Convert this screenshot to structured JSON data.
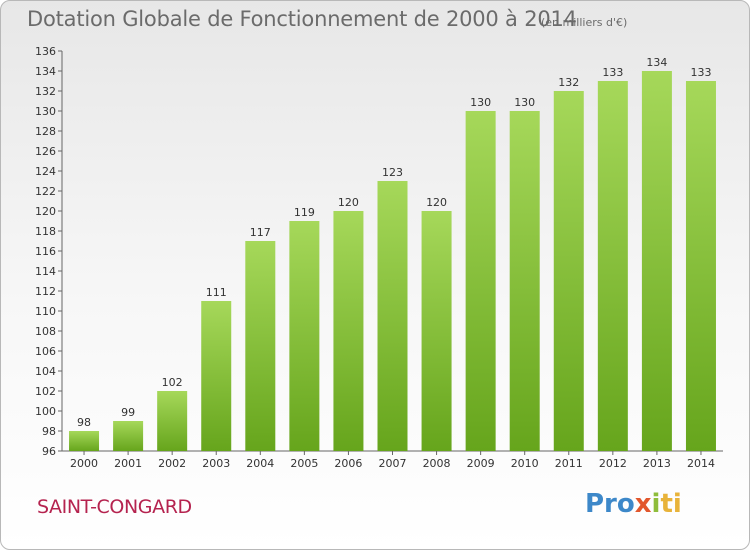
{
  "header": {
    "title": "Dotation Globale de Fonctionnement de 2000 à 2014",
    "unit": "(en milliers d'€)"
  },
  "footer": {
    "commune": "SAINT-CONGARD",
    "logo": {
      "text": "Proxiti",
      "parts": [
        "Pro",
        "x",
        "i",
        "ti"
      ]
    }
  },
  "colors": {
    "bar_light": "#a6d85a",
    "bar_dark": "#66a51c",
    "commune_text": "#b5234f"
  },
  "chart_data": {
    "type": "bar",
    "title": "Dotation Globale de Fonctionnement de 2000 à 2014",
    "subtitle": "(en milliers d'€)",
    "xlabel": "",
    "ylabel": "",
    "categories": [
      "2000",
      "2001",
      "2002",
      "2003",
      "2004",
      "2005",
      "2006",
      "2007",
      "2008",
      "2009",
      "2010",
      "2011",
      "2012",
      "2013",
      "2014"
    ],
    "values": [
      98,
      99,
      102,
      111,
      117,
      119,
      120,
      123,
      120,
      130,
      130,
      132,
      133,
      134,
      133
    ],
    "ylim": [
      96,
      136
    ],
    "yticks": [
      96,
      98,
      100,
      102,
      104,
      106,
      108,
      110,
      112,
      114,
      116,
      118,
      120,
      122,
      124,
      126,
      128,
      130,
      132,
      134,
      136
    ],
    "grid": false,
    "legend": "none"
  }
}
